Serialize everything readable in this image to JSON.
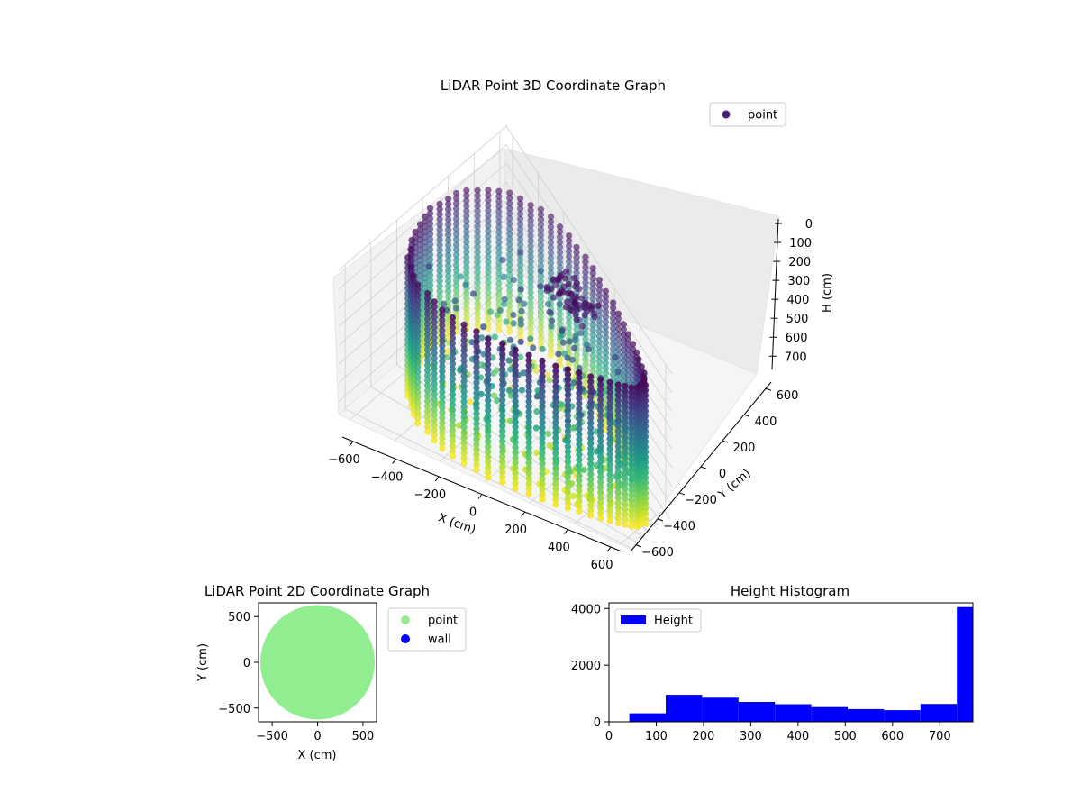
{
  "chart_data": [
    {
      "type": "scatter3d",
      "title": "LiDAR Point 3D Coordinate Graph",
      "xlabel": "X (cm)",
      "ylabel": "Y (cm)",
      "zlabel": "H (cm)",
      "xlim": [
        -650,
        650
      ],
      "ylim": [
        -650,
        650
      ],
      "zlim": [
        0,
        770
      ],
      "z_inverted": true,
      "xticks": [
        -600,
        -400,
        -200,
        0,
        200,
        400,
        600
      ],
      "yticks": [
        -600,
        -400,
        -200,
        0,
        200,
        400,
        600
      ],
      "zticks": [
        0,
        100,
        200,
        300,
        400,
        500,
        600,
        700
      ],
      "grid": true,
      "legend_position": "top-right",
      "colormap": "viridis",
      "series": [
        {
          "name": "point",
          "color": "#482374",
          "shape": "cylindrical wall of radius ~600 cm, height 0–770 cm, with interior clutter"
        }
      ]
    },
    {
      "type": "scatter",
      "title": "LiDAR Point 2D Coordinate Graph",
      "xlabel": "X (cm)",
      "ylabel": "Y (cm)",
      "xlim": [
        -650,
        650
      ],
      "ylim": [
        -650,
        650
      ],
      "xticks": [
        -500,
        0,
        500
      ],
      "yticks": [
        -500,
        0,
        500
      ],
      "legend_position": "outside-right",
      "series": [
        {
          "name": "point",
          "color": "#90ee90",
          "region": "filled disc, radius ~630 cm"
        },
        {
          "name": "wall",
          "color": "#0000ff"
        }
      ]
    },
    {
      "type": "bar",
      "title": "Height Histogram",
      "xlabel": "",
      "ylabel": "",
      "xlim": [
        0,
        770
      ],
      "ylim": [
        0,
        4200
      ],
      "xticks": [
        0,
        100,
        200,
        300,
        400,
        500,
        600,
        700
      ],
      "yticks": [
        0,
        2000,
        4000
      ],
      "legend_position": "top-left",
      "color": "#0000ff",
      "series": [
        {
          "name": "Height",
          "bins": [
            {
              "x0": 43,
              "x1": 120,
              "value": 300
            },
            {
              "x0": 120,
              "x1": 197,
              "value": 950
            },
            {
              "x0": 197,
              "x1": 274,
              "value": 850
            },
            {
              "x0": 274,
              "x1": 351,
              "value": 700
            },
            {
              "x0": 351,
              "x1": 428,
              "value": 620
            },
            {
              "x0": 428,
              "x1": 505,
              "value": 520
            },
            {
              "x0": 505,
              "x1": 582,
              "value": 450
            },
            {
              "x0": 582,
              "x1": 659,
              "value": 410
            },
            {
              "x0": 659,
              "x1": 736,
              "value": 630
            },
            {
              "x0": 736,
              "x1": 770,
              "value": 4050
            }
          ]
        }
      ]
    }
  ]
}
